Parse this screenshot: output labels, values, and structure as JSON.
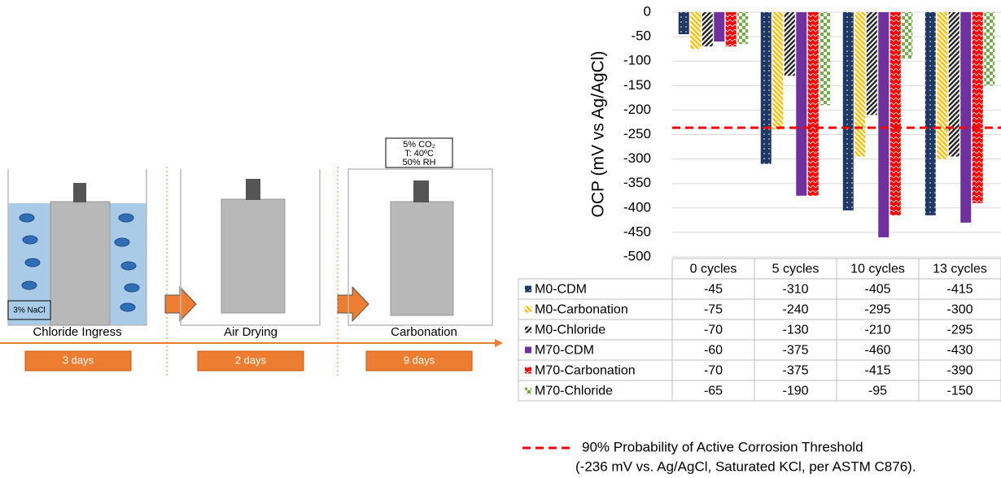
{
  "diagram": {
    "stages": [
      {
        "label": "Chloride Ingress",
        "duration": "3 days"
      },
      {
        "label": "Air Drying",
        "duration": "2 days"
      },
      {
        "label": "Carbonation",
        "duration": "9 days"
      }
    ],
    "solution": "3% NaCl",
    "conditions": [
      "5% CO₂",
      "T: 40ºC",
      "50% RH"
    ]
  },
  "chart_data": {
    "type": "bar",
    "ylabel": "OCP (mV vs Ag/AgCl)",
    "categories": [
      "0 cycles",
      "5 cycles",
      "10 cycles",
      "13 cycles"
    ],
    "series": [
      {
        "name": "M0-CDM",
        "color": "#1f3864",
        "values": [
          -45,
          -310,
          -405,
          -415
        ]
      },
      {
        "name": "M0-Carbonation",
        "color": "#ffc000",
        "values": [
          -75,
          -240,
          -295,
          -300
        ]
      },
      {
        "name": "M0-Chloride",
        "color": "#262626",
        "values": [
          -70,
          -130,
          -210,
          -295
        ]
      },
      {
        "name": "M70-CDM",
        "color": "#7030a0",
        "values": [
          -60,
          -375,
          -460,
          -430
        ]
      },
      {
        "name": "M70-Carbonation",
        "color": "#ff0000",
        "values": [
          -70,
          -375,
          -415,
          -390
        ]
      },
      {
        "name": "M70-Chloride",
        "color": "#70ad47",
        "values": [
          -65,
          -190,
          -95,
          -150
        ]
      }
    ],
    "ylim": [
      -500,
      0
    ],
    "yticks": [
      0,
      -50,
      -100,
      -150,
      -200,
      -250,
      -300,
      -350,
      -400,
      -450,
      -500
    ],
    "grid": true,
    "threshold": {
      "value": -236,
      "color": "#ff0000",
      "label": "90% Probability of Active Corrosion Threshold",
      "note": "(-236 mV vs. Ag/AgCl, Saturated KCl, per ASTM C876)."
    }
  }
}
